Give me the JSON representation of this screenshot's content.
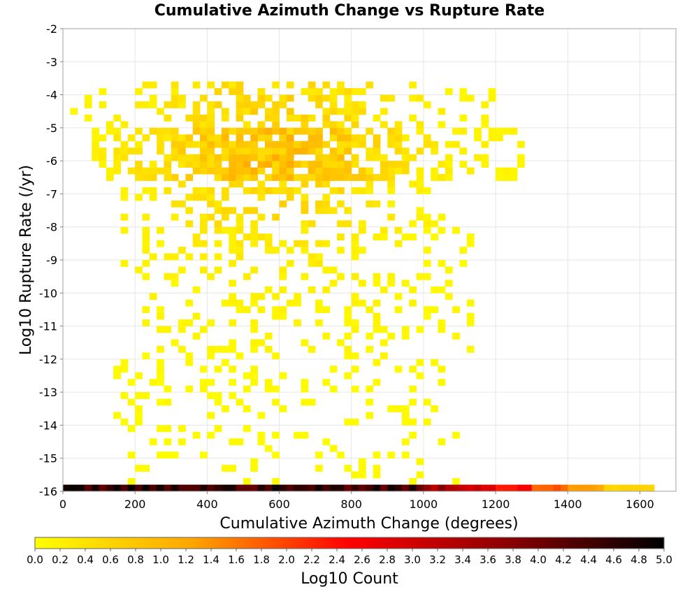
{
  "chart_data": {
    "type": "heatmap",
    "title": "Cumulative Azimuth Change vs Rupture Rate",
    "xlabel": "Cumulative Azimuth Change (degrees)",
    "ylabel": "Log10 Rupture Rate (/yr)",
    "xlim": [
      0,
      1700
    ],
    "ylim": [
      -16,
      -2
    ],
    "x_ticks": [
      "0",
      "200",
      "400",
      "600",
      "800",
      "1000",
      "1200",
      "1400",
      "1600"
    ],
    "y_ticks": [
      "-2",
      "-3",
      "-4",
      "-5",
      "-6",
      "-7",
      "-8",
      "-9",
      "-10",
      "-11",
      "-12",
      "-13",
      "-14",
      "-15",
      "-16"
    ],
    "grid": true,
    "colorbar": {
      "label": "Log10 Count",
      "range": [
        0.0,
        5.0
      ],
      "ticks": [
        "0.0",
        "0.2",
        "0.4",
        "0.6",
        "0.8",
        "1.0",
        "1.2",
        "1.4",
        "1.6",
        "1.8",
        "2.0",
        "2.2",
        "2.4",
        "2.6",
        "2.8",
        "3.0",
        "3.2",
        "3.4",
        "3.6",
        "3.8",
        "4.0",
        "4.2",
        "4.4",
        "4.6",
        "4.8",
        "5.0"
      ],
      "colors": [
        "#ffff00",
        "#ffa500",
        "#ff0000",
        "#8b0000",
        "#000000"
      ]
    },
    "bin_size": {
      "x": 20,
      "y": 0.2
    },
    "bottom_row": {
      "y": -15.9,
      "segments": [
        {
          "x_from": 0,
          "x_to": 1000,
          "log10_count": 4.5
        },
        {
          "x_from": 1000,
          "x_to": 1100,
          "log10_count": 3.6
        },
        {
          "x_from": 1100,
          "x_to": 1200,
          "log10_count": 3.0
        },
        {
          "x_from": 1200,
          "x_to": 1300,
          "log10_count": 2.4
        },
        {
          "x_from": 1300,
          "x_to": 1400,
          "log10_count": 1.8
        },
        {
          "x_from": 1400,
          "x_to": 1500,
          "log10_count": 1.3
        },
        {
          "x_from": 1500,
          "x_to": 1640,
          "log10_count": 0.6
        }
      ]
    },
    "density_profile": {
      "rows": [
        {
          "y_from": -15.8,
          "y_to": -14.0,
          "x_from": 180,
          "x_to": 1100,
          "density": 0.32,
          "max_log10_count": 0.6
        },
        {
          "y_from": -14.0,
          "y_to": -12.0,
          "x_from": 140,
          "x_to": 1060,
          "density": 0.36,
          "max_log10_count": 0.7
        },
        {
          "y_from": -12.0,
          "y_to": -10.0,
          "x_from": 220,
          "x_to": 1160,
          "density": 0.42,
          "max_log10_count": 0.8
        },
        {
          "y_from": -10.0,
          "y_to": -8.0,
          "x_from": 140,
          "x_to": 1140,
          "density": 0.36,
          "max_log10_count": 0.7
        },
        {
          "y_from": -8.0,
          "y_to": -6.6,
          "x_from": 140,
          "x_to": 1060,
          "density": 0.38,
          "max_log10_count": 0.8
        },
        {
          "y_from": -6.6,
          "y_to": -5.0,
          "x_from": 80,
          "x_to": 1280,
          "density": 0.72,
          "max_log10_count": 1.2
        },
        {
          "y_from": -5.0,
          "y_to": -3.6,
          "x_from": 20,
          "x_to": 1200,
          "density": 0.45,
          "max_log10_count": 0.9
        }
      ],
      "peak": {
        "x": 580,
        "y": -5.9
      }
    }
  }
}
